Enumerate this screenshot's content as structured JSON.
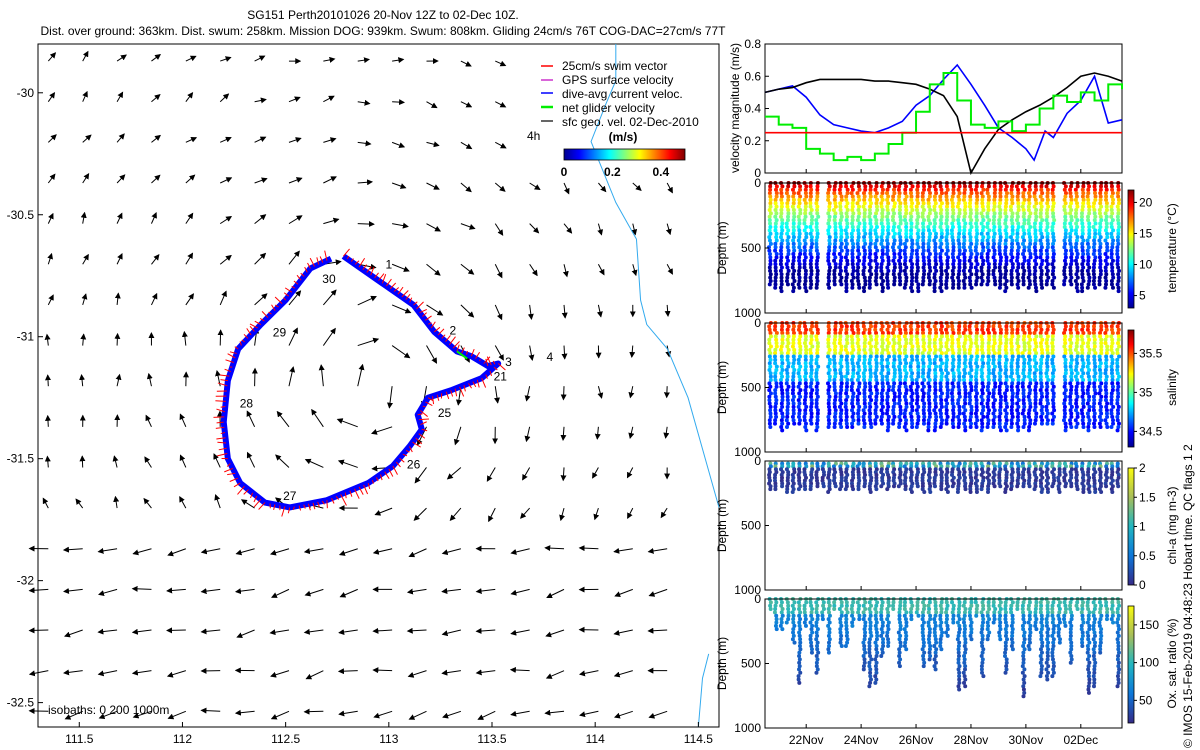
{
  "title": {
    "line1": "SG151 Perth20101026 20-Nov 12Z to 02-Dec 10Z.",
    "line2": "Dist. over ground: 363km. Dist. swum: 258km. Mission DOG: 939km. Swum: 808km. Gliding 24cm/s 76T COG-DAC=27cm/s 77T"
  },
  "copyright": "© IMOS 15-Feb-2019 04:48:23 Hobart time. QC flags 1  2",
  "colors": {
    "swim": "#ff0000",
    "gps": "#cc33cc",
    "dac": "#0000ff",
    "net": "#00ee00",
    "geo": "#000000"
  },
  "chart_data": [
    {
      "type": "scatter",
      "name": "map",
      "xlabel": "",
      "ylabel": "",
      "xlim": [
        111.3,
        114.6
      ],
      "ylim": [
        -32.6,
        -29.8
      ],
      "xticks": [
        "111.5",
        "112",
        "112.5",
        "113",
        "113.5",
        "114",
        "114.5"
      ],
      "xtick_values": [
        111.5,
        112,
        112.5,
        113,
        113.5,
        114,
        114.5
      ],
      "yticks": [
        "-30",
        "-30.5",
        "-31",
        "-31.5",
        "-32",
        "-32.5"
      ],
      "ytick_values": [
        -30,
        -30.5,
        -31,
        -31.5,
        -32,
        -32.5
      ],
      "legend": [
        {
          "label": "25cm/s swim vector",
          "color": "#ff0000"
        },
        {
          "label": "GPS surface velocity",
          "color": "#cc33cc"
        },
        {
          "label": "dive-avg current veloc.",
          "color": "#0000ff"
        },
        {
          "label": "net glider velocity",
          "color": "#00ee00"
        },
        {
          "label": "sfc geo. vel. 02-Dec-2010",
          "color": "#000000"
        }
      ],
      "legend_4h": "4h",
      "colorbar": {
        "unit": "(m/s)",
        "ticks": [
          "0",
          "0.2",
          "0.4"
        ],
        "tick_values": [
          0,
          0.2,
          0.4
        ],
        "range": [
          0,
          0.5
        ]
      },
      "isobaths": "isobaths: 0   200  1000m",
      "track": [
        [
          112.78,
          -30.67
        ],
        [
          112.95,
          -30.77
        ],
        [
          113.12,
          -30.87
        ],
        [
          113.22,
          -30.98
        ],
        [
          113.33,
          -31.06
        ],
        [
          113.4,
          -31.08
        ],
        [
          113.48,
          -31.12
        ],
        [
          113.53,
          -31.11
        ],
        [
          113.45,
          -31.17
        ],
        [
          113.3,
          -31.22
        ],
        [
          113.19,
          -31.25
        ],
        [
          113.14,
          -31.32
        ],
        [
          113.16,
          -31.38
        ],
        [
          113.1,
          -31.45
        ],
        [
          113.02,
          -31.53
        ],
        [
          112.9,
          -31.6
        ],
        [
          112.7,
          -31.67
        ],
        [
          112.52,
          -31.7
        ],
        [
          112.4,
          -31.68
        ],
        [
          112.28,
          -31.6
        ],
        [
          112.22,
          -31.5
        ],
        [
          112.2,
          -31.35
        ],
        [
          112.22,
          -31.18
        ],
        [
          112.27,
          -31.05
        ],
        [
          112.38,
          -30.95
        ],
        [
          112.5,
          -30.85
        ],
        [
          112.62,
          -30.72
        ],
        [
          112.72,
          -30.68
        ]
      ],
      "track_labels": [
        {
          "t": "1",
          "x": 113.0,
          "y": -30.72
        },
        {
          "t": "2",
          "x": 113.31,
          "y": -30.99
        },
        {
          "t": "3",
          "x": 113.58,
          "y": -31.12
        },
        {
          "t": "4",
          "x": 113.78,
          "y": -31.1
        },
        {
          "t": "21",
          "x": 113.54,
          "y": -31.18
        },
        {
          "t": "25",
          "x": 113.27,
          "y": -31.33
        },
        {
          "t": "26",
          "x": 113.12,
          "y": -31.54
        },
        {
          "t": "27",
          "x": 112.52,
          "y": -31.67
        },
        {
          "t": "28",
          "x": 112.31,
          "y": -31.29
        },
        {
          "t": "29",
          "x": 112.47,
          "y": -31.0
        },
        {
          "t": "30",
          "x": 112.71,
          "y": -30.78
        }
      ],
      "coast": [
        [
          114.1,
          -29.8
        ],
        [
          114.1,
          -29.95
        ],
        [
          114.05,
          -30.05
        ],
        [
          113.98,
          -30.2
        ],
        [
          114.1,
          -30.45
        ],
        [
          114.2,
          -30.6
        ],
        [
          114.22,
          -30.85
        ],
        [
          114.25,
          -30.95
        ],
        [
          114.35,
          -31.05
        ],
        [
          114.45,
          -31.25
        ],
        [
          114.55,
          -31.55
        ],
        [
          114.6,
          -31.7
        ]
      ],
      "coast2": [
        [
          114.55,
          -32.3
        ],
        [
          114.52,
          -32.4
        ],
        [
          114.5,
          -32.6
        ]
      ]
    },
    {
      "type": "line",
      "name": "velocity",
      "ylabel": "velocity magnitude (m/s)",
      "ylim": [
        0,
        0.8
      ],
      "yticks": [
        "0",
        "0.2",
        "0.4",
        "0.6",
        "0.8"
      ],
      "ytick_values": [
        0,
        0.2,
        0.4,
        0.6,
        0.8
      ],
      "xlim": [
        20.5,
        33.5
      ],
      "series": [
        {
          "name": "dive-avg current veloc.",
          "color": "#0000ff",
          "x": [
            20.5,
            21,
            21.5,
            22,
            22.5,
            23,
            23.5,
            24,
            24.5,
            25,
            25.5,
            26,
            26.5,
            27,
            27.5,
            28,
            28.5,
            29,
            29.5,
            30,
            30.3,
            30.7,
            31,
            31.5,
            32,
            32.5,
            33,
            33.5
          ],
          "values": [
            0.5,
            0.52,
            0.54,
            0.47,
            0.36,
            0.3,
            0.28,
            0.26,
            0.25,
            0.28,
            0.32,
            0.42,
            0.48,
            0.58,
            0.67,
            0.55,
            0.42,
            0.28,
            0.22,
            0.15,
            0.08,
            0.26,
            0.22,
            0.37,
            0.45,
            0.6,
            0.31,
            0.33
          ]
        },
        {
          "name": "sfc geo. vel.",
          "color": "#000000",
          "x": [
            20.5,
            21,
            21.5,
            22,
            22.5,
            23,
            23.5,
            24,
            24.5,
            25,
            25.5,
            26,
            26.5,
            27,
            27.5,
            28,
            28.5,
            29,
            29.5,
            30,
            30.5,
            31,
            31.5,
            32,
            32.5,
            33,
            33.5
          ],
          "values": [
            0.5,
            0.52,
            0.53,
            0.56,
            0.58,
            0.58,
            0.58,
            0.58,
            0.57,
            0.57,
            0.56,
            0.55,
            0.52,
            0.48,
            0.35,
            0.0,
            0.15,
            0.27,
            0.33,
            0.38,
            0.42,
            0.47,
            0.53,
            0.6,
            0.62,
            0.6,
            0.57
          ]
        },
        {
          "name": "net glider velocity",
          "color": "#00ee00",
          "x": [
            20.5,
            21,
            21.5,
            22,
            22.5,
            23,
            23.5,
            24,
            24.5,
            25,
            25.5,
            26,
            26.5,
            27,
            27.5,
            28,
            28.5,
            29,
            29.5,
            30,
            30.5,
            31,
            31.5,
            32,
            32.5,
            33,
            33.5
          ],
          "values": [
            0.35,
            0.3,
            0.28,
            0.15,
            0.12,
            0.08,
            0.1,
            0.08,
            0.12,
            0.18,
            0.25,
            0.38,
            0.55,
            0.62,
            0.45,
            0.3,
            0.28,
            0.32,
            0.26,
            0.3,
            0.4,
            0.48,
            0.44,
            0.5,
            0.45,
            0.55,
            0.52
          ]
        },
        {
          "name": "25cm/s swim vector",
          "color": "#ff0000",
          "x": [
            20.5,
            33.5
          ],
          "values": [
            0.25,
            0.25
          ]
        }
      ]
    },
    {
      "type": "heatmap",
      "name": "temperature",
      "ylabel": "Depth (m)",
      "ylim": [
        1000,
        0
      ],
      "yticks": [
        "0",
        "500",
        "1000"
      ],
      "ytick_values": [
        0,
        500,
        1000
      ],
      "cbar_label": "temperature (°C)",
      "cbar_ticks": [
        "5",
        "10",
        "15",
        "20"
      ],
      "cbar_tick_values": [
        5,
        10,
        15,
        20
      ],
      "cbar_range": [
        3,
        22
      ]
    },
    {
      "type": "heatmap",
      "name": "salinity",
      "ylabel": "Depth (m)",
      "ylim": [
        1000,
        0
      ],
      "yticks": [
        "0",
        "500",
        "1000"
      ],
      "ytick_values": [
        0,
        500,
        1000
      ],
      "cbar_label": "salinity",
      "cbar_ticks": [
        "34.5",
        "35",
        "35.5"
      ],
      "cbar_tick_values": [
        34.5,
        35,
        35.5
      ],
      "cbar_range": [
        34.3,
        35.8
      ]
    },
    {
      "type": "heatmap",
      "name": "chla",
      "ylabel": "Depth (m)",
      "ylim": [
        1000,
        0
      ],
      "yticks": [
        "0",
        "500",
        "1000"
      ],
      "ytick_values": [
        0,
        500,
        1000
      ],
      "cbar_label": "chl-a (mg m-3)",
      "cbar_ticks": [
        "0",
        "0.5",
        "1",
        "1.5",
        "2"
      ],
      "cbar_tick_values": [
        0,
        0.5,
        1,
        1.5,
        2
      ],
      "cbar_range": [
        0,
        2
      ]
    },
    {
      "type": "heatmap",
      "name": "oxygen",
      "ylabel": "Depth (m)",
      "ylim": [
        1000,
        0
      ],
      "yticks": [
        "0",
        "500",
        "1000"
      ],
      "ytick_values": [
        0,
        500,
        1000
      ],
      "cbar_label": "Ox. sat. ratio (%)",
      "cbar_ticks": [
        "50",
        "100",
        "150"
      ],
      "cbar_tick_values": [
        50,
        100,
        150
      ],
      "cbar_range": [
        20,
        175
      ],
      "xticks": [
        "22Nov",
        "24Nov",
        "26Nov",
        "28Nov",
        "30Nov",
        "02Dec"
      ],
      "xtick_values": [
        22,
        24,
        26,
        28,
        30,
        32
      ]
    }
  ]
}
